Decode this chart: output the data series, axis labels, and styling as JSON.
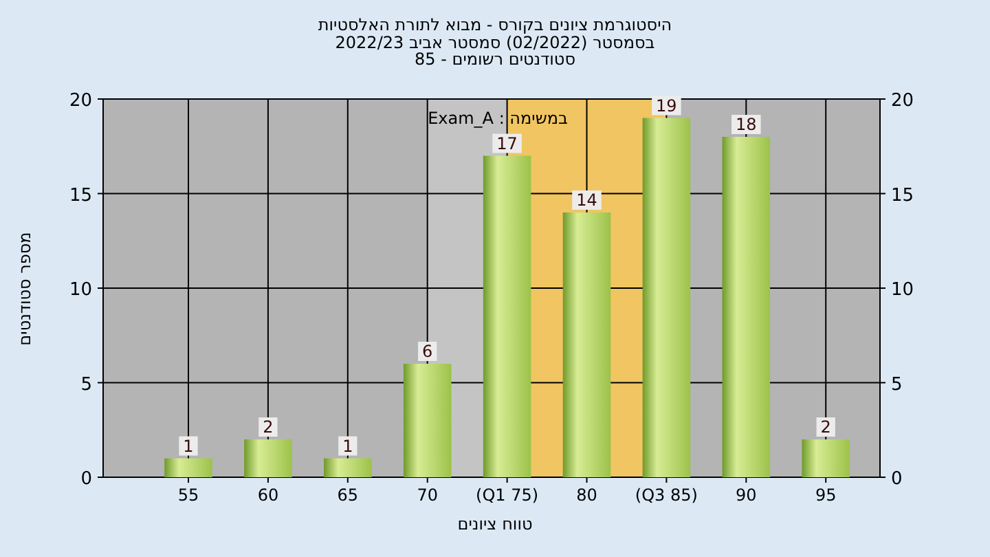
{
  "chart_data": {
    "type": "bar",
    "title": "היסטוגרמת ציונים בקורס - מבוא לתורת האלסטיות",
    "subtitle": "בסמסטר  (02/2022)  סמסטר אביב 2022/23\nסטודנטים רשומים - 85",
    "xlabel": "טווח ציונים",
    "ylabel": "מספר סטודנטים",
    "categories": [
      "55",
      "60",
      "65",
      "70",
      "(Q1 75)",
      "80",
      "(Q3 85)",
      "90",
      "95"
    ],
    "values": [
      1,
      2,
      1,
      6,
      17,
      14,
      19,
      18,
      2
    ],
    "color": "#9cc24a",
    "ylim": [
      0,
      20
    ],
    "yticks": [
      0,
      5,
      10,
      15,
      20
    ],
    "y2lim": [
      0,
      20
    ],
    "y2ticks": [
      0,
      5,
      10,
      15,
      20
    ],
    "grid": true,
    "data_labels": true,
    "bands": [
      {
        "axis": "x",
        "from": "70",
        "to": "(Q1 75)",
        "color": "#c8c8c8"
      },
      {
        "axis": "x",
        "from": "(Q1 75)",
        "to": "(Q3 85)",
        "color": "#ffc94d"
      }
    ],
    "annotations": [
      "במשימה : Exam_A"
    ]
  }
}
